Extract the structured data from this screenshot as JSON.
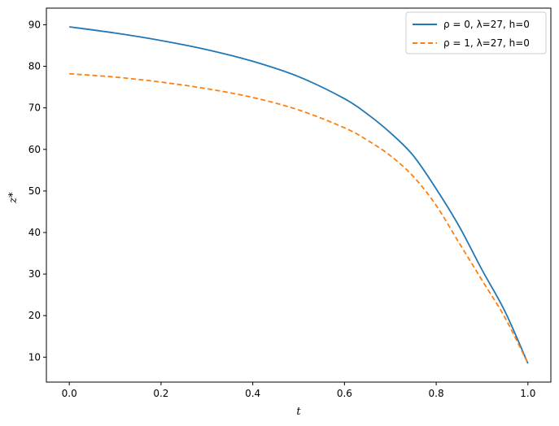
{
  "chart_data": {
    "type": "line",
    "title": "",
    "xlabel": "t",
    "ylabel": "z*",
    "xlim": [
      -0.05,
      1.05
    ],
    "ylim": [
      4,
      94
    ],
    "xticks": [
      "0.0",
      "0.2",
      "0.4",
      "0.6",
      "0.8",
      "1.0"
    ],
    "yticks": [
      "10",
      "20",
      "30",
      "40",
      "50",
      "60",
      "70",
      "80",
      "90"
    ],
    "grid": false,
    "legend_position": "top-right",
    "series": [
      {
        "name": "ρ = 0, λ=27, h=0",
        "color": "#1f77b4",
        "style": "solid",
        "x": [
          0.0,
          0.1,
          0.2,
          0.3,
          0.4,
          0.5,
          0.6,
          0.65,
          0.7,
          0.75,
          0.8,
          0.85,
          0.9,
          0.95,
          1.0
        ],
        "y": [
          89.5,
          88.0,
          86.2,
          84.0,
          81.2,
          77.5,
          72.2,
          68.5,
          64.0,
          58.5,
          50.5,
          41.5,
          31.0,
          21.0,
          8.5
        ]
      },
      {
        "name": "ρ = 1, λ=27, h=0",
        "color": "#ff7f0e",
        "style": "dashed",
        "x": [
          0.0,
          0.1,
          0.2,
          0.3,
          0.4,
          0.5,
          0.6,
          0.65,
          0.7,
          0.75,
          0.8,
          0.85,
          0.9,
          0.95,
          1.0
        ],
        "y": [
          78.2,
          77.4,
          76.2,
          74.6,
          72.5,
          69.5,
          65.2,
          62.2,
          58.5,
          53.5,
          46.5,
          37.5,
          28.5,
          19.5,
          8.5
        ]
      }
    ]
  }
}
